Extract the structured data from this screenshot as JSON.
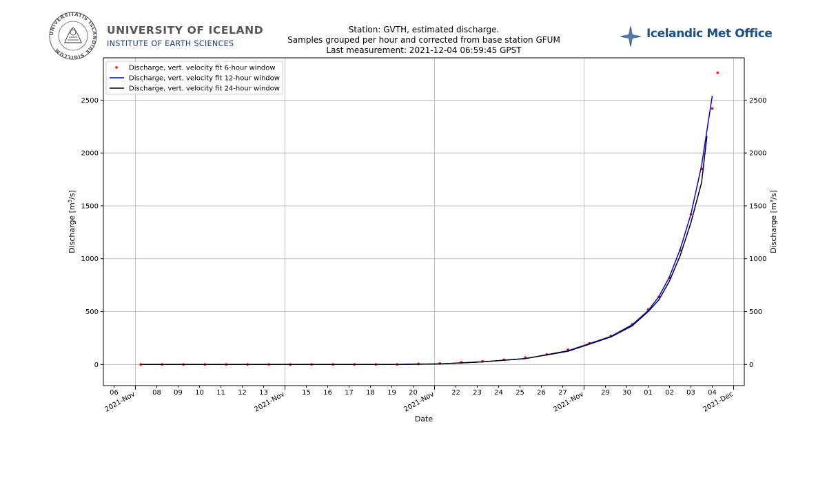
{
  "header": {
    "university_name": "UNIVERSITY OF ICELAND",
    "institute_name": "INSTITUTE OF EARTH SCIENCES",
    "met_office_name": "Icelandic Met Office",
    "seal_lettering": "UNIVERSITATIS ISLANDIAE SIGILLUM",
    "colors": {
      "university_gray": "#555555",
      "institute_blue": "#1a3a73",
      "met_office_blue": "#1d4e86"
    }
  },
  "chart_data": {
    "type": "scatter",
    "title": [
      "Station: GVTH, estimated discharge.",
      "Samples grouped per hour and corrected from base station GFUM",
      "Last measurement: 2021-12-04 06:59:45 GPST"
    ],
    "xlabel": "Date",
    "ylabel": "Discharge [m",
    "ylabel_sup": "3",
    "ylabel_tail": "/s]",
    "xlim": [
      "2021-11-05T12:00",
      "2021-12-05T12:00"
    ],
    "ylim": [
      -200,
      2900
    ],
    "y_ticks": [
      0,
      500,
      1000,
      1500,
      2000,
      2500
    ],
    "x_ticks": [
      {
        "date": "2021-11-06",
        "label": "06"
      },
      {
        "date": "2021-11-07",
        "label": "2021-Nov",
        "rotated": true
      },
      {
        "date": "2021-11-08",
        "label": "08"
      },
      {
        "date": "2021-11-09",
        "label": "09"
      },
      {
        "date": "2021-11-10",
        "label": "10"
      },
      {
        "date": "2021-11-11",
        "label": "11"
      },
      {
        "date": "2021-11-12",
        "label": "12"
      },
      {
        "date": "2021-11-13",
        "label": "13"
      },
      {
        "date": "2021-11-14",
        "label": "2021-Nov",
        "rotated": true
      },
      {
        "date": "2021-11-15",
        "label": "15"
      },
      {
        "date": "2021-11-16",
        "label": "16"
      },
      {
        "date": "2021-11-17",
        "label": "17"
      },
      {
        "date": "2021-11-18",
        "label": "18"
      },
      {
        "date": "2021-11-19",
        "label": "19"
      },
      {
        "date": "2021-11-20",
        "label": "20"
      },
      {
        "date": "2021-11-21",
        "label": "2021-Nov",
        "rotated": true
      },
      {
        "date": "2021-11-22",
        "label": "22"
      },
      {
        "date": "2021-11-23",
        "label": "23"
      },
      {
        "date": "2021-11-24",
        "label": "24"
      },
      {
        "date": "2021-11-25",
        "label": "25"
      },
      {
        "date": "2021-11-26",
        "label": "26"
      },
      {
        "date": "2021-11-27",
        "label": "27"
      },
      {
        "date": "2021-11-28",
        "label": "2021-Nov",
        "rotated": true
      },
      {
        "date": "2021-11-29",
        "label": "29"
      },
      {
        "date": "2021-11-30",
        "label": "30"
      },
      {
        "date": "2021-12-01",
        "label": "01"
      },
      {
        "date": "2021-12-02",
        "label": "02"
      },
      {
        "date": "2021-12-03",
        "label": "03"
      },
      {
        "date": "2021-12-04",
        "label": "04"
      },
      {
        "date": "2021-12-05",
        "label": "2021-Dec",
        "rotated": true
      }
    ],
    "x_gridlines": [
      "2021-11-07",
      "2021-11-14",
      "2021-11-21",
      "2021-11-28",
      "2021-12-05"
    ],
    "grid": true,
    "y_axis_mirrored_right": true,
    "legend_placement": "upper-left",
    "series": [
      {
        "name": "Discharge, vert. velocity fit 6-hour window",
        "kind": "scatter",
        "color": "#ff0000",
        "x": [
          "2021-11-07T06:00",
          "2021-11-08T06:00",
          "2021-11-09T06:00",
          "2021-11-10T06:00",
          "2021-11-11T06:00",
          "2021-11-12T06:00",
          "2021-11-13T06:00",
          "2021-11-14T06:00",
          "2021-11-15T06:00",
          "2021-11-16T06:00",
          "2021-11-17T06:00",
          "2021-11-18T06:00",
          "2021-11-19T06:00",
          "2021-11-20T06:00",
          "2021-11-21T06:00",
          "2021-11-22T06:00",
          "2021-11-23T06:00",
          "2021-11-24T06:00",
          "2021-11-25T06:00",
          "2021-11-26T06:00",
          "2021-11-27T06:00",
          "2021-11-28T06:00",
          "2021-11-29T06:00",
          "2021-11-30T06:00",
          "2021-12-01T00:00",
          "2021-12-01T12:00",
          "2021-12-02T00:00",
          "2021-12-02T12:00",
          "2021-12-03T00:00",
          "2021-12-03T12:00",
          "2021-12-04T00:00",
          "2021-12-04T06:00"
        ],
        "y": [
          0,
          0,
          0,
          0,
          0,
          0,
          0,
          0,
          0,
          0,
          0,
          0,
          0,
          5,
          10,
          20,
          30,
          45,
          65,
          95,
          140,
          200,
          270,
          380,
          520,
          640,
          820,
          1080,
          1420,
          1850,
          2420,
          2760
        ]
      },
      {
        "name": "Discharge, vert. velocity fit 12-hour window",
        "kind": "line",
        "color": "#0000ff",
        "x": [
          "2021-11-07T06:00",
          "2021-11-09T06:00",
          "2021-11-11T06:00",
          "2021-11-13T06:00",
          "2021-11-15T06:00",
          "2021-11-17T06:00",
          "2021-11-19T06:00",
          "2021-11-21T06:00",
          "2021-11-23T06:00",
          "2021-11-25T06:00",
          "2021-11-27T06:00",
          "2021-11-29T06:00",
          "2021-11-30T06:00",
          "2021-12-01T00:00",
          "2021-12-01T12:00",
          "2021-12-02T00:00",
          "2021-12-02T12:00",
          "2021-12-03T00:00",
          "2021-12-03T12:00",
          "2021-12-04T00:00"
        ],
        "y": [
          0,
          0,
          0,
          0,
          0,
          0,
          0,
          5,
          25,
          55,
          130,
          265,
          375,
          510,
          640,
          830,
          1090,
          1420,
          1880,
          2540
        ]
      },
      {
        "name": "Discharge, vert. velocity fit 24-hour window",
        "kind": "line",
        "color": "#000000",
        "x": [
          "2021-11-07T06:00",
          "2021-11-09T06:00",
          "2021-11-11T06:00",
          "2021-11-13T06:00",
          "2021-11-15T06:00",
          "2021-11-17T06:00",
          "2021-11-19T06:00",
          "2021-11-21T06:00",
          "2021-11-23T06:00",
          "2021-11-25T06:00",
          "2021-11-27T06:00",
          "2021-11-29T06:00",
          "2021-11-30T06:00",
          "2021-12-01T00:00",
          "2021-12-01T12:00",
          "2021-12-02T00:00",
          "2021-12-02T12:00",
          "2021-12-03T00:00",
          "2021-12-03T12:00",
          "2021-12-03T18:00"
        ],
        "y": [
          0,
          0,
          0,
          0,
          0,
          0,
          0,
          5,
          25,
          55,
          125,
          260,
          365,
          500,
          610,
          790,
          1030,
          1340,
          1720,
          2160
        ]
      }
    ]
  }
}
